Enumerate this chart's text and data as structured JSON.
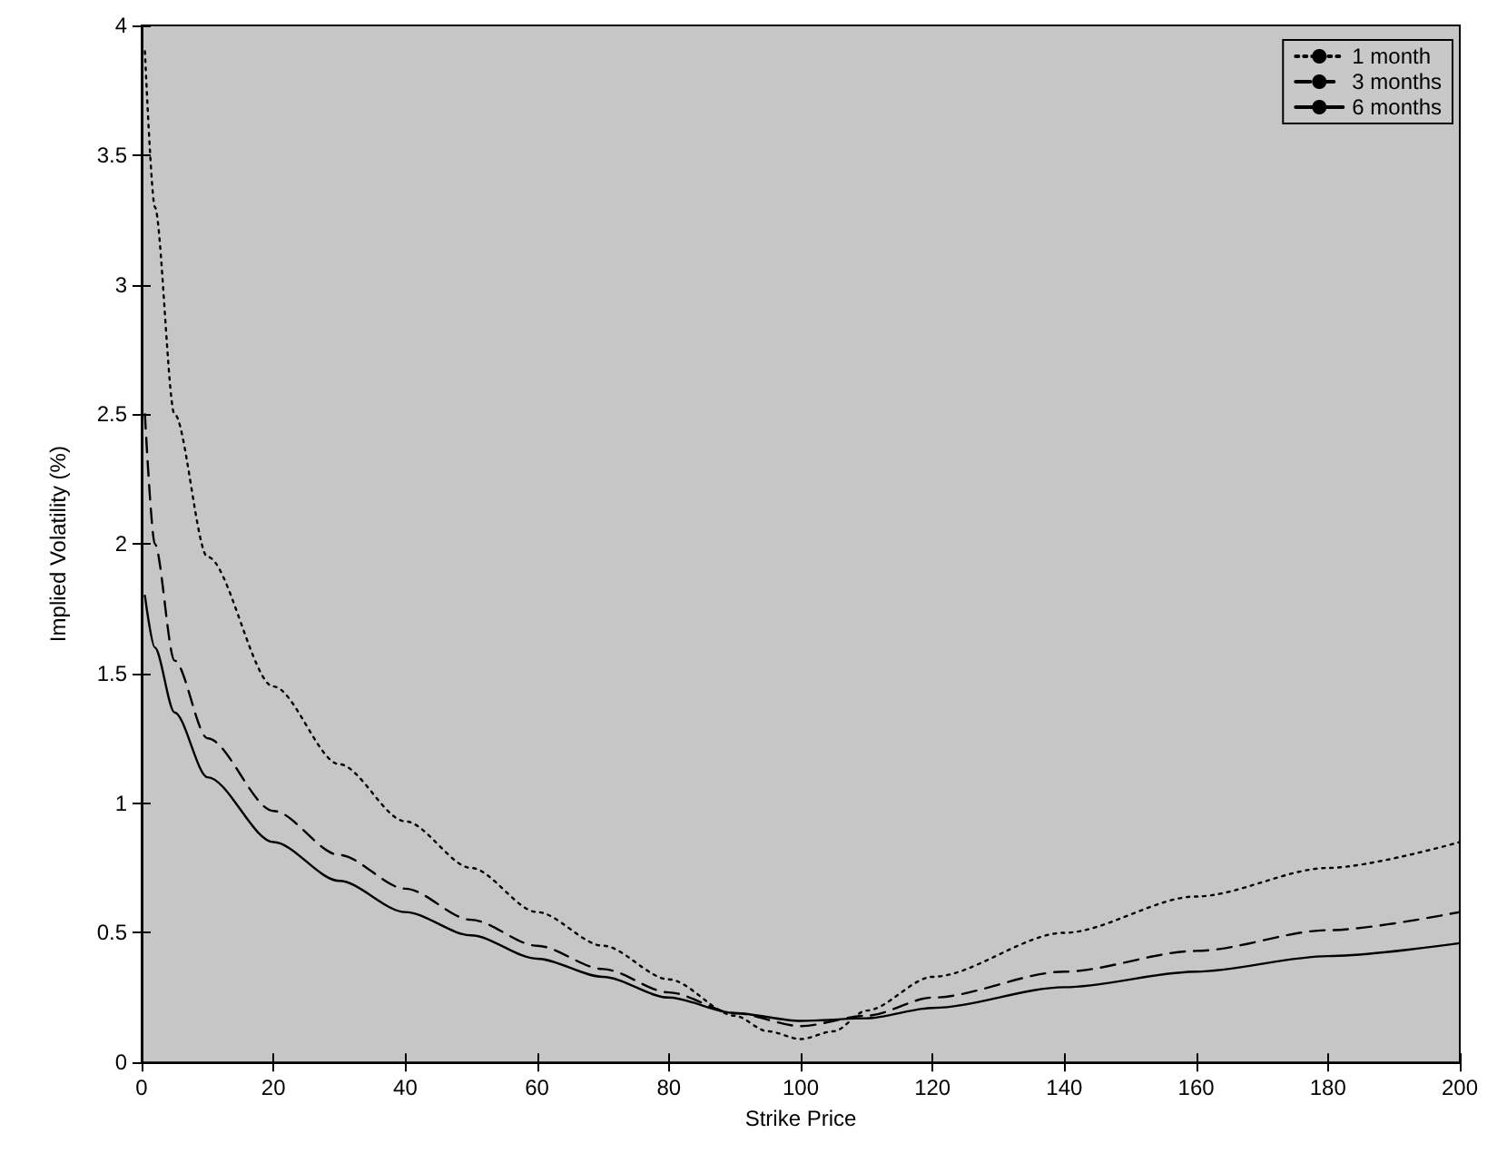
{
  "chart_data": {
    "type": "line",
    "xlabel": "Strike Price",
    "ylabel": "Implied Volatility (%)",
    "xlim": [
      0,
      200
    ],
    "xticks": [
      0,
      20,
      40,
      60,
      80,
      100,
      120,
      140,
      160,
      180,
      200
    ],
    "ylim": [
      0,
      4
    ],
    "yticks": [
      0,
      0.5,
      1,
      1.5,
      2,
      2.5,
      3,
      3.5,
      4
    ],
    "grid": false,
    "legend": "top right",
    "marker": "none",
    "series": [
      {
        "name": "1 month",
        "color": "#000000",
        "line_style": "dotted",
        "x": [
          0.5,
          2,
          5,
          10,
          20,
          30,
          40,
          50,
          60,
          70,
          80,
          90,
          95,
          100,
          105,
          110,
          120,
          140,
          160,
          180,
          200
        ],
        "values": [
          3.9,
          3.3,
          2.5,
          1.95,
          1.45,
          1.15,
          0.93,
          0.75,
          0.58,
          0.45,
          0.32,
          0.18,
          0.12,
          0.09,
          0.12,
          0.2,
          0.33,
          0.5,
          0.64,
          0.75,
          0.85
        ]
      },
      {
        "name": "3 months",
        "color": "#000000",
        "line_style": "dashed",
        "x": [
          0.5,
          2,
          5,
          10,
          20,
          30,
          40,
          50,
          60,
          70,
          80,
          90,
          100,
          110,
          120,
          140,
          160,
          180,
          200
        ],
        "values": [
          2.5,
          2.0,
          1.55,
          1.25,
          0.97,
          0.8,
          0.67,
          0.55,
          0.45,
          0.36,
          0.27,
          0.19,
          0.14,
          0.18,
          0.25,
          0.35,
          0.43,
          0.51,
          0.58
        ]
      },
      {
        "name": "6 months",
        "color": "#000000",
        "line_style": "solid",
        "x": [
          0.5,
          2,
          5,
          10,
          20,
          30,
          40,
          50,
          60,
          70,
          80,
          90,
          100,
          110,
          120,
          140,
          160,
          180,
          200
        ],
        "values": [
          1.8,
          1.6,
          1.35,
          1.1,
          0.85,
          0.7,
          0.58,
          0.49,
          0.4,
          0.33,
          0.25,
          0.19,
          0.16,
          0.17,
          0.21,
          0.29,
          0.35,
          0.41,
          0.46
        ]
      }
    ]
  }
}
